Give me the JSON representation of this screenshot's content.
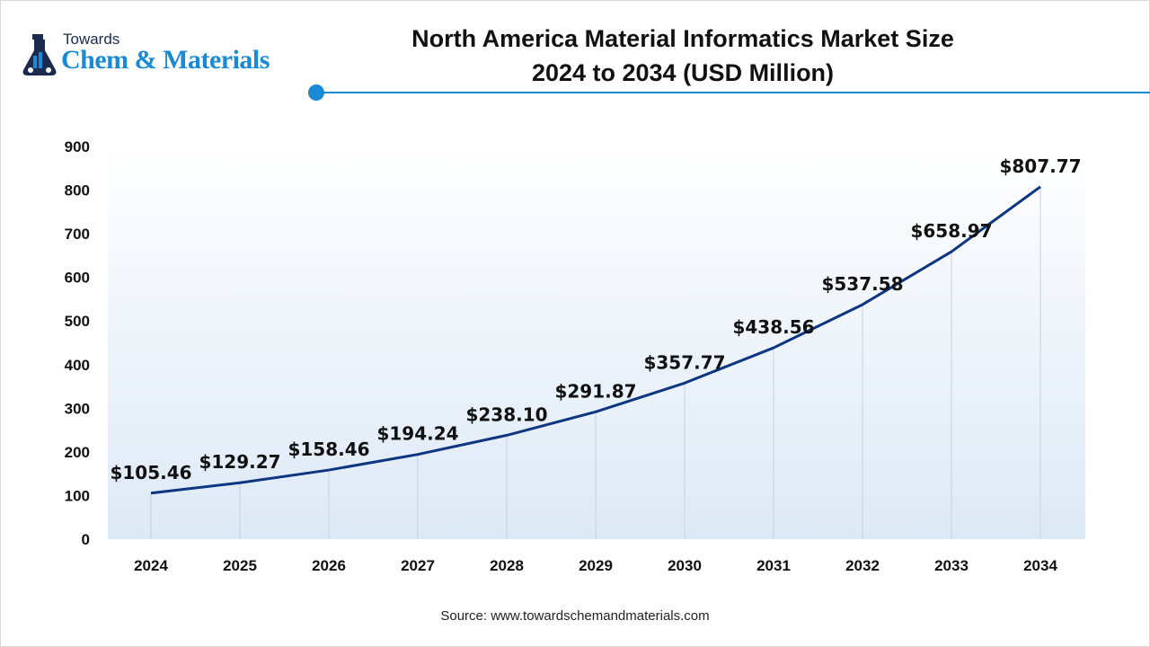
{
  "logo": {
    "line1": "Towards",
    "line2": "Chem & Materials"
  },
  "title_line1": "North America Material Informatics Market Size",
  "title_line2": "2024 to 2034 (USD Million)",
  "source": "Source: www.towardschemandmaterials.com",
  "colors": {
    "line": "#0d3580",
    "accent": "#1a8ad4",
    "plot_bg_top": "#ffffff",
    "plot_bg_bottom": "#dde9f6"
  },
  "chart_data": {
    "type": "line",
    "categories": [
      "2024",
      "2025",
      "2026",
      "2027",
      "2028",
      "2029",
      "2030",
      "2031",
      "2032",
      "2033",
      "2034"
    ],
    "values": [
      105.46,
      129.27,
      158.46,
      194.24,
      238.1,
      291.87,
      357.77,
      438.56,
      537.58,
      658.97,
      807.77
    ],
    "data_labels": [
      "$105.46",
      "$129.27",
      "$158.46",
      "$194.24",
      "$238.10",
      "$291.87",
      "$357.77",
      "$438.56",
      "$537.58",
      "$658.97",
      "$807.77"
    ],
    "ylim": [
      0,
      900
    ],
    "yticks": [
      "0",
      "100",
      "200",
      "300",
      "400",
      "500",
      "600",
      "700",
      "800",
      "900"
    ],
    "grid": "vertical drop lines",
    "legend": "none"
  }
}
